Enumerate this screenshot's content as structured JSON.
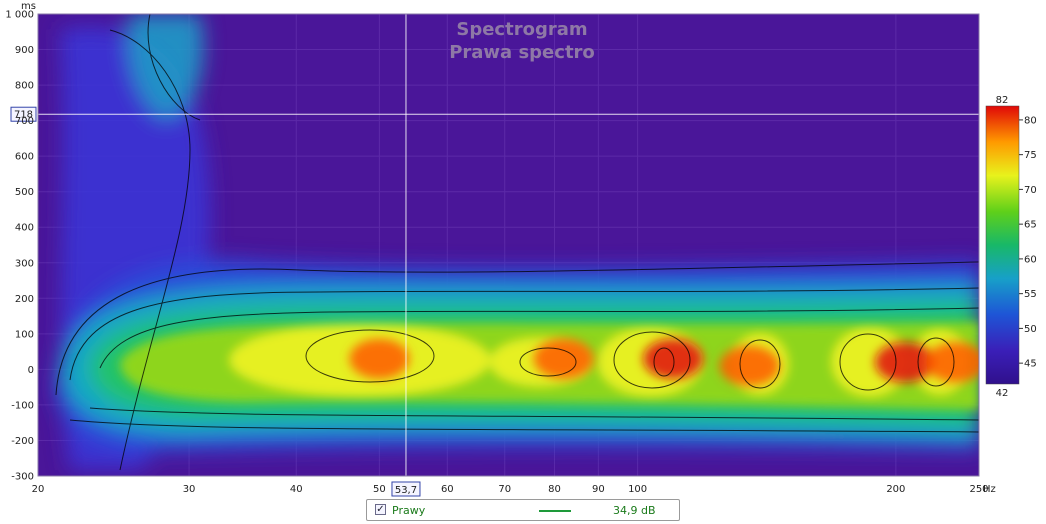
{
  "chart_data": {
    "type": "heatmap",
    "title": "Spectrogram",
    "subtitle": "Prawa spectro",
    "x_axis": {
      "unit": "Hz",
      "scale": "log",
      "range": [
        20,
        250
      ],
      "ticks": [
        {
          "value": 20,
          "label": "20"
        },
        {
          "value": 30,
          "label": "30"
        },
        {
          "value": 40,
          "label": "40"
        },
        {
          "value": 50,
          "label": "50"
        },
        {
          "value": 60,
          "label": "60"
        },
        {
          "value": 70,
          "label": "70"
        },
        {
          "value": 80,
          "label": "80"
        },
        {
          "value": 90,
          "label": "90"
        },
        {
          "value": 100,
          "label": "100"
        },
        {
          "value": 200,
          "label": "200"
        },
        {
          "value": 250,
          "label": "250"
        }
      ]
    },
    "y_axis": {
      "unit": "ms",
      "range": [
        -300,
        1000
      ],
      "ticks": [
        {
          "value": 1000,
          "label": "1 000"
        },
        {
          "value": 900,
          "label": "900"
        },
        {
          "value": 800,
          "label": "800"
        },
        {
          "value": 700,
          "label": "700"
        },
        {
          "value": 600,
          "label": "600"
        },
        {
          "value": 500,
          "label": "500"
        },
        {
          "value": 400,
          "label": "400"
        },
        {
          "value": 300,
          "label": "300"
        },
        {
          "value": 200,
          "label": "200"
        },
        {
          "value": 100,
          "label": "100"
        },
        {
          "value": 0,
          "label": "0"
        },
        {
          "value": -100,
          "label": "-100"
        },
        {
          "value": -200,
          "label": "-200"
        },
        {
          "value": -300,
          "label": "-300"
        }
      ]
    },
    "colorbar": {
      "unit": "dB",
      "range": [
        42,
        82
      ],
      "ticks": [
        42,
        45,
        50,
        55,
        60,
        65,
        70,
        75,
        80,
        82
      ]
    },
    "cursor": {
      "x_label": "53,7",
      "x_value": 53.7,
      "y_label": "718",
      "y_value": 718
    },
    "peaks": [
      {
        "x": 50,
        "y": 30,
        "level": 79
      },
      {
        "x": 82,
        "y": 30,
        "level": 76
      },
      {
        "x": 110,
        "y": 30,
        "level": 81
      },
      {
        "x": 135,
        "y": 10,
        "level": 75
      },
      {
        "x": 205,
        "y": 20,
        "level": 80
      },
      {
        "x": 235,
        "y": 20,
        "level": 76
      }
    ],
    "legend": [
      {
        "name": "Prawy",
        "value": "34,9 dB",
        "checked": true,
        "check_glyph": "✓",
        "color": "#1e9a3a"
      }
    ],
    "grid": true,
    "legend_placement": "bottom-center"
  },
  "colors": {
    "background": "#4a1699",
    "grid": "#5c2aa8",
    "cursor": "#ffffff",
    "contour": "#000000",
    "palette": [
      "#3a0e9a",
      "#1e3fcf",
      "#1b9ac9",
      "#19b86a",
      "#5fd01a",
      "#e8f21c",
      "#ffb000",
      "#ff5a00",
      "#e01010"
    ]
  }
}
